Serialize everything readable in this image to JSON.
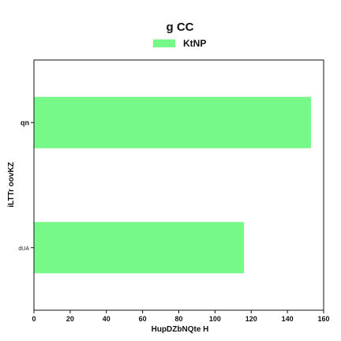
{
  "chart_data": {
    "type": "bar",
    "orientation": "horizontal",
    "title": "g  CC",
    "xlabel": "HupDZbNQte H",
    "ylabel": "iLTTr oovKZ",
    "categories": [
      "qn",
      "dUA"
    ],
    "series": [
      {
        "name": "KtNP",
        "values": [
          153,
          116
        ],
        "color": "#77f98a"
      }
    ],
    "xlim": [
      0,
      160
    ],
    "xticks": [
      0,
      20,
      40,
      60,
      80,
      100,
      120,
      140,
      160
    ],
    "grid": false,
    "legend": "top-center"
  }
}
